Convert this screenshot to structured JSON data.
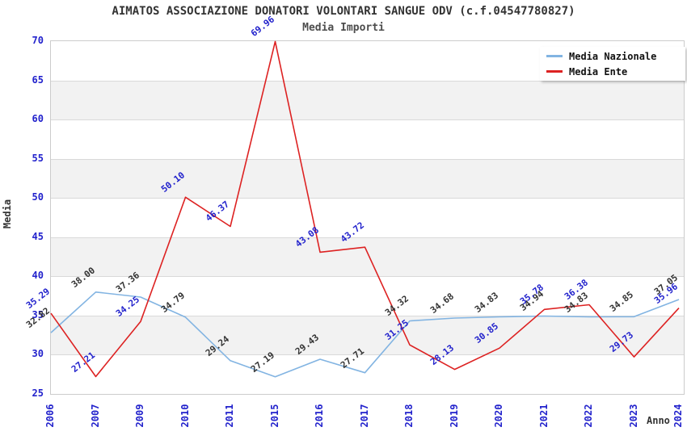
{
  "chart_data": {
    "type": "line",
    "title": "AIMATOS ASSOCIAZIONE DONATORI VOLONTARI SANGUE ODV (c.f.04547780827)",
    "subtitle": "Media Importi",
    "xlabel": "Anno",
    "ylabel": "Media",
    "ylim": [
      25,
      70
    ],
    "ytick_step": 5,
    "grid": true,
    "legend_position": "top-right",
    "categories": [
      "2006",
      "2007",
      "2009",
      "2010",
      "2011",
      "2015",
      "2016",
      "2017",
      "2018",
      "2019",
      "2020",
      "2021",
      "2022",
      "2023",
      "2024"
    ],
    "series": [
      {
        "name": "Media Nazionale",
        "color": "#82b4e2",
        "label_color": "#333333",
        "values": [
          32.82,
          38.0,
          37.36,
          34.79,
          29.24,
          27.19,
          29.43,
          27.71,
          34.32,
          34.68,
          34.83,
          34.94,
          34.83,
          34.85,
          37.05
        ]
      },
      {
        "name": "Media Ente",
        "color": "#dd2222",
        "label_color": "#2222cc",
        "values": [
          35.29,
          27.21,
          34.25,
          50.1,
          46.37,
          69.96,
          43.08,
          43.72,
          31.25,
          28.13,
          30.85,
          35.78,
          36.38,
          29.73,
          35.96
        ]
      }
    ]
  },
  "colors": {
    "tick_label": "#2222cc",
    "axis_text": "#333333",
    "band_gray": "#f2f2f2",
    "gridline": "#d9d9d9",
    "frame_border": "#cccccc",
    "background": "#ffffff"
  }
}
